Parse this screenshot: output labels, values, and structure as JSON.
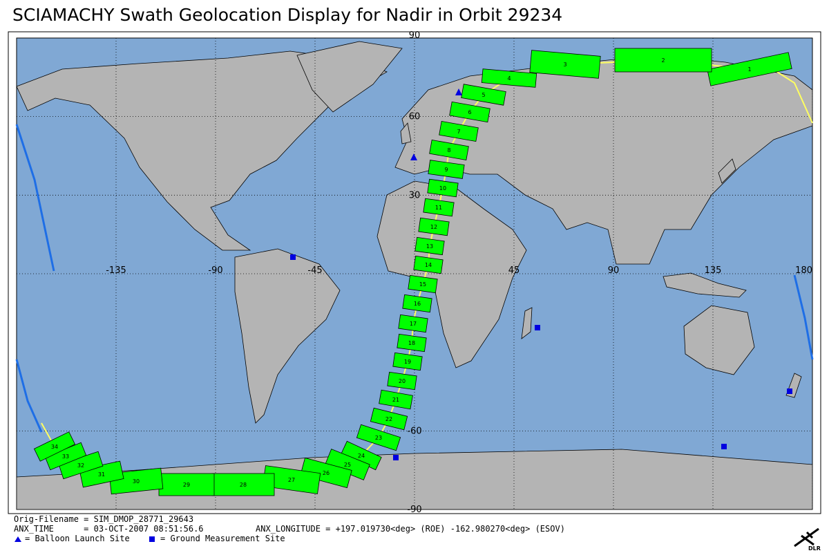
{
  "title": "SCIAMACHY Swath Geolocation Display for Nadir in Orbit 29234",
  "map": {
    "lon_ticks": [
      -135,
      -90,
      -45,
      45,
      90,
      135,
      180
    ],
    "lat_ticks": [
      90,
      60,
      30,
      -60,
      -90
    ],
    "swaths": [
      "1",
      "2",
      "3",
      "4",
      "5",
      "6",
      "7",
      "8",
      "9",
      "10",
      "11",
      "12",
      "13",
      "14",
      "15",
      "16",
      "17",
      "18",
      "19",
      "20",
      "21",
      "22",
      "23",
      "24",
      "25",
      "26",
      "27",
      "28",
      "29",
      "30",
      "31",
      "32",
      "33",
      "34"
    ]
  },
  "footer": {
    "filename": "Orig-Filename = SIM_DMOP_28771_29643",
    "anx_time": "ANX_TIME      = 03-OCT-2007 08:51:56.6",
    "anx_longitude": "ANX_LONGITUDE = +197.019730<deg> (ROE) -162.980270<deg> (ESOV)",
    "legend_balloon": "= Balloon Launch Site",
    "legend_ground": "= Ground Measurement Site",
    "logo": "DLR"
  }
}
